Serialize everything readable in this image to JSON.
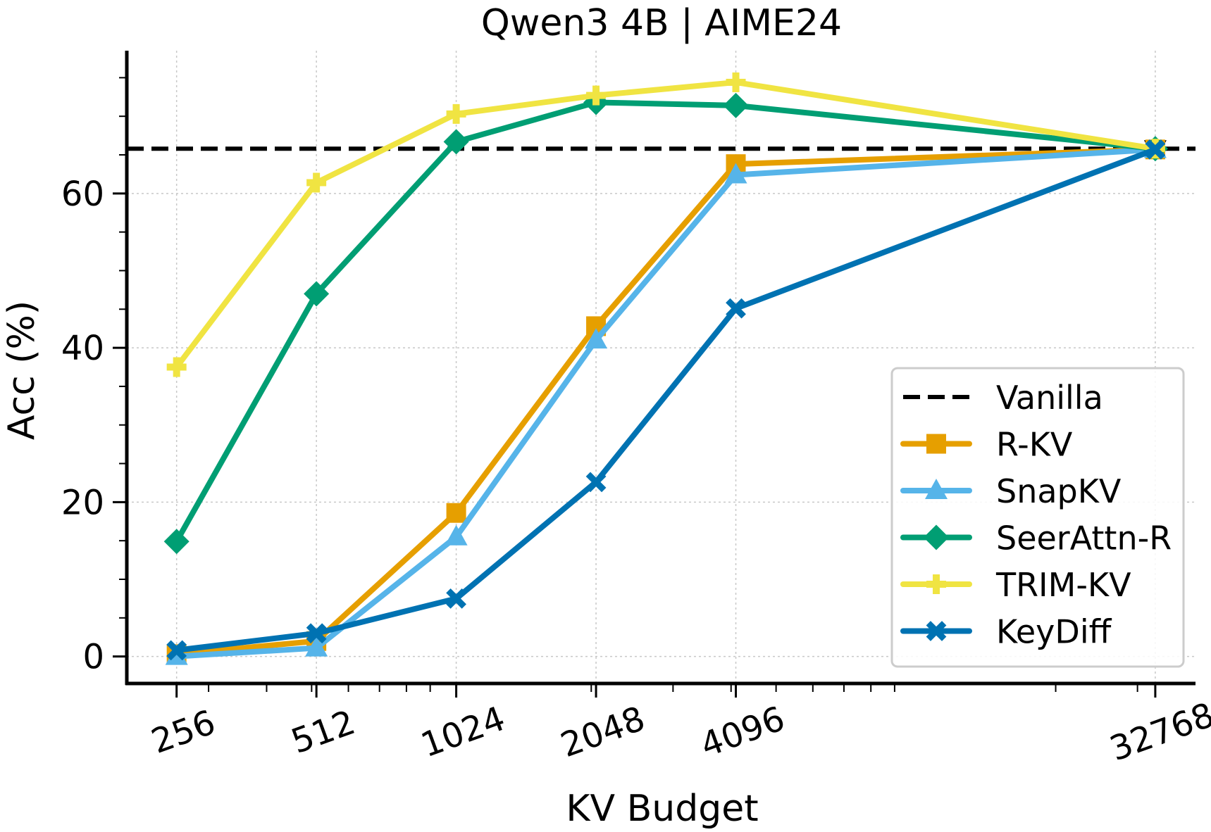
{
  "chart_data": {
    "type": "line",
    "title": "Qwen3 4B | AIME24",
    "xlabel": "KV Budget",
    "ylabel": "Acc (%)",
    "x_scale": "log2",
    "categories": [
      "256",
      "512",
      "1024",
      "2048",
      "4096",
      "32768"
    ],
    "x": [
      256,
      512,
      1024,
      2048,
      4096,
      32768
    ],
    "ylim": [
      -3.5,
      78.5
    ],
    "yticks": [
      "0",
      "20",
      "40",
      "60"
    ],
    "ytick_values": [
      0,
      20,
      40,
      60
    ],
    "grid": true,
    "legend_position": "lower-right",
    "reference_line": {
      "name": "Vanilla",
      "value": 65.8,
      "color": "#000000",
      "style": "dashed"
    },
    "series": [
      {
        "name": "R-KV",
        "color": "#E69F00",
        "marker": "square",
        "values": [
          0.3,
          2.0,
          18.6,
          42.8,
          63.8,
          65.7
        ]
      },
      {
        "name": "SnapKV",
        "color": "#56B4E9",
        "marker": "triangle-up",
        "values": [
          0.0,
          1.1,
          15.5,
          41.0,
          62.4,
          65.7
        ]
      },
      {
        "name": "SeerAttn-R",
        "color": "#009E73",
        "marker": "diamond",
        "values": [
          14.9,
          47.0,
          66.7,
          71.8,
          71.4,
          65.8
        ]
      },
      {
        "name": "TRIM-KV",
        "color": "#F0E442",
        "marker": "plus",
        "values": [
          37.5,
          61.4,
          70.3,
          72.7,
          74.4,
          65.8
        ]
      },
      {
        "name": "KeyDiff",
        "color": "#0072B2",
        "marker": "x",
        "values": [
          0.8,
          3.0,
          7.5,
          22.6,
          45.1,
          65.7
        ]
      }
    ],
    "legend_entries": [
      "Vanilla",
      "R-KV",
      "SnapKV",
      "SeerAttn-R",
      "TRIM-KV",
      "KeyDiff"
    ]
  }
}
